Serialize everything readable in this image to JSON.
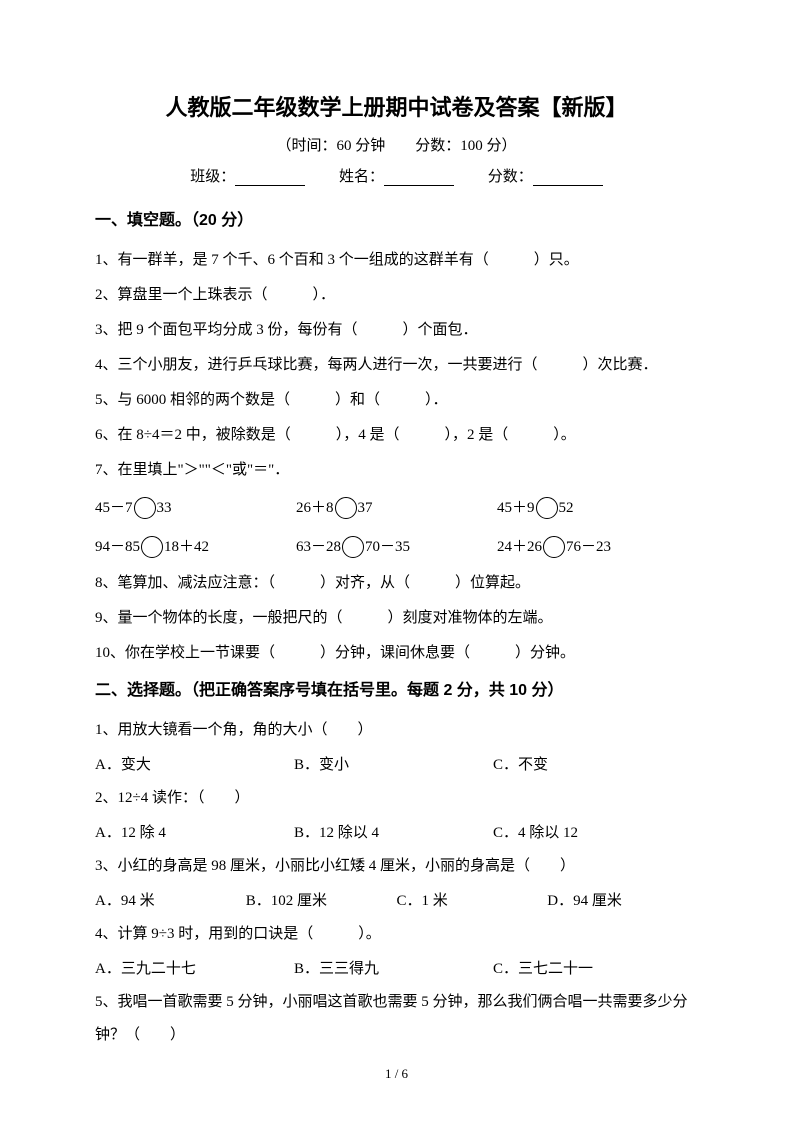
{
  "title": "人教版二年级数学上册期中试卷及答案【新版】",
  "subtitle": "（时间：60 分钟　　分数：100 分）",
  "info": {
    "class_label": "班级：",
    "name_label": "姓名：",
    "score_label": "分数："
  },
  "section1": {
    "header": "一、填空题。（20 分）",
    "q1": "1、有一群羊，是 7 个千、6 个百和 3 个一组成的这群羊有（　　　）只。",
    "q2": "2、算盘里一个上珠表示（　　　）．",
    "q3": "3、把 9 个面包平均分成 3 份，每份有（　　　）个面包．",
    "q4": "4、三个小朋友，进行乒乓球比赛，每两人进行一次，一共要进行（　　　）次比赛．",
    "q5": "5、与 6000 相邻的两个数是（　　　）和（　　　）．",
    "q6": "6、在 8÷4＝2 中，被除数是（　　　），4 是（　　　），2 是（　　　）。",
    "q7": "7、在里填上\"＞\"\"＜\"或\"＝\"．",
    "eq1": {
      "a": "45－7",
      "b": "33"
    },
    "eq2": {
      "a": "26＋8",
      "b": "37"
    },
    "eq3": {
      "a": "45＋9",
      "b": "52"
    },
    "eq4": {
      "a": "94－85",
      "b": "18＋42"
    },
    "eq5": {
      "a": "63－28",
      "b": "70－35"
    },
    "eq6": {
      "a": "24＋26",
      "b": "76－23"
    },
    "q8": "8、笔算加、减法应注意：（　　　）对齐，从（　　　）位算起。",
    "q9": "9、量一个物体的长度，一般把尺的（　　　）刻度对准物体的左端。",
    "q10": "10、你在学校上一节课要（　　　）分钟，课间休息要（　　　）分钟。"
  },
  "section2": {
    "header": "二、选择题。（把正确答案序号填在括号里。每题 2 分，共 10 分）",
    "q1": "1、用放大镜看一个角，角的大小（　　）",
    "q1a": "A．变大",
    "q1b": "B．变小",
    "q1c": "C．不变",
    "q2": "2、12÷4 读作：（　　）",
    "q2a": "A．12 除 4",
    "q2b": "B．12 除以 4",
    "q2c": "C．4 除以 12",
    "q3": "3、小红的身高是 98 厘米，小丽比小红矮 4 厘米，小丽的身高是（　　）",
    "q3a": "A．94 米",
    "q3b": "B．102 厘米",
    "q3c": "C．1 米",
    "q3d": "D．94 厘米",
    "q4": "4、计算 9÷3 时，用到的口诀是（　　　）。",
    "q4a": "A．三九二十七",
    "q4b": "B．三三得九",
    "q4c": "C．三七二十一",
    "q5": "5、我唱一首歌需要 5 分钟，小丽唱这首歌也需要 5 分钟，那么我们俩合唱一共需要多少分钟？（　　）"
  },
  "footer": "1 / 6"
}
